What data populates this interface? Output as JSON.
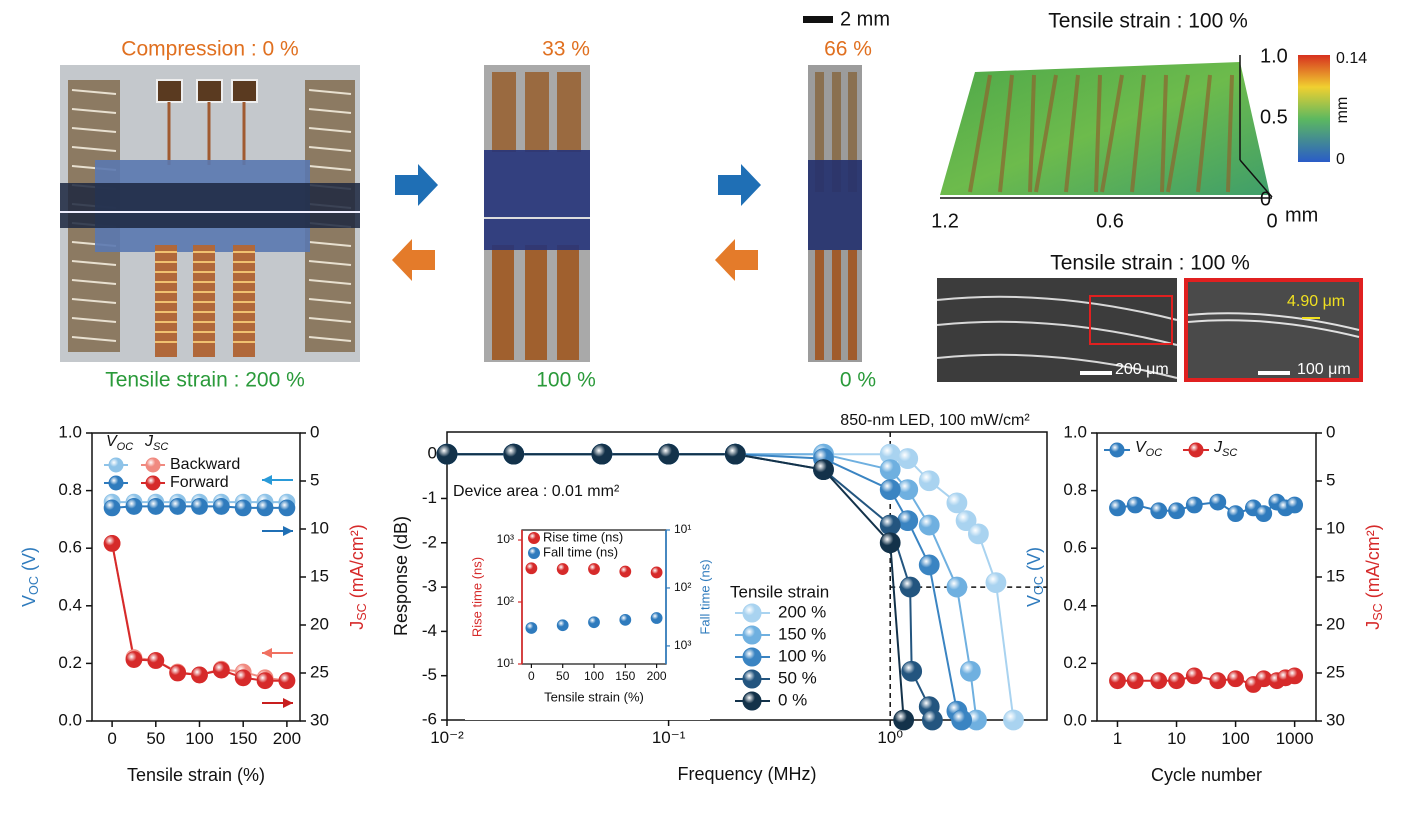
{
  "panels": {
    "photo1": {
      "top": "Compression : 0 %",
      "bottom": "Tensile strain : 200 %"
    },
    "photo2": {
      "top": "33 %",
      "bottom": "100 %"
    },
    "photo3": {
      "top": "66 %",
      "bottom": "0 %"
    },
    "scale_bar": "2 mm",
    "surface": {
      "title": "Tensile strain : 100 %",
      "z_ticks": [
        "1.0",
        "0.5",
        "0"
      ],
      "x_ticks": [
        "1.2",
        "0.6",
        "0"
      ],
      "unit": "mm",
      "colorbar_ticks": [
        "0.14",
        "0"
      ],
      "colorbar_unit": "mm"
    },
    "sem": {
      "title": "Tensile strain : 100 %",
      "scale_left": "200 μm",
      "scale_right": "100 μm",
      "thickness": "4.90 μm"
    }
  },
  "chart_data": [
    {
      "type": "line",
      "x": [
        0,
        25,
        50,
        75,
        100,
        125,
        150,
        175,
        200
      ],
      "xlim": [
        -23,
        215
      ],
      "xticks": [
        0,
        50,
        100,
        150,
        200
      ],
      "xlabel": "Tensile strain (%)",
      "ylim": [
        0,
        1
      ],
      "yticks": [
        {
          "value": 0,
          "label": "0.0"
        },
        0.2,
        0.4,
        0.6,
        0.8,
        {
          "value": 1,
          "label": "1.0"
        }
      ],
      "ylabel": [
        "V",
        "OC",
        " (V)"
      ],
      "ylabel_color": "#2f7bbd",
      "y2lim": [
        30,
        0
      ],
      "y2ticks": [
        0,
        5,
        10,
        15,
        20,
        25,
        30
      ],
      "y2label": [
        "J",
        "SC",
        " (mA/cm²)"
      ],
      "y2label_color": "#d62a2a",
      "legend_headers": [
        [
          "V",
          "OC"
        ],
        [
          "J",
          "SC"
        ]
      ],
      "series": [
        {
          "name": "Backward",
          "color": "#8ec3e8",
          "values": [
            0.76,
            0.76,
            0.76,
            0.76,
            0.76,
            0.76,
            0.76,
            0.76,
            0.76
          ]
        },
        {
          "name": "Forward",
          "color": "#2f7bbd",
          "values": [
            0.74,
            0.745,
            0.745,
            0.745,
            0.745,
            0.745,
            0.74,
            0.74,
            0.74
          ]
        },
        {
          "name": "Backward",
          "color": "#f08a80",
          "axis": "y2",
          "values": [
            11.5,
            23.4,
            23.7,
            24.9,
            25.2,
            24.6,
            24.9,
            25.5,
            25.8
          ]
        },
        {
          "name": "Forward",
          "color": "#d62a2a",
          "axis": "y2",
          "values": [
            11.5,
            23.6,
            23.7,
            25.0,
            25.2,
            24.7,
            25.5,
            25.8,
            25.8
          ]
        }
      ]
    },
    {
      "type": "line",
      "xscale": "log",
      "xlim": [
        0.01,
        5.1
      ],
      "xticks": [
        {
          "value": 0.01,
          "label": "10⁻²"
        },
        {
          "value": 0.1,
          "label": "10⁻¹"
        },
        {
          "value": 1,
          "label": "10⁰"
        }
      ],
      "xlabel": "Frequency (MHz)",
      "ylim": [
        -6,
        0.5
      ],
      "yticks": [
        0,
        -1,
        -2,
        -3,
        -4,
        -5,
        -6
      ],
      "ylabel": "Response (dB)",
      "vlines": [
        1
      ],
      "hlines": [
        -3
      ],
      "annotations": [
        "850-nm LED, 100 mW/cm²",
        "Device area : 0.01 mm²"
      ],
      "legend_title": "Tensile strain",
      "series": [
        {
          "name": "200 %",
          "color": "#a9d3f0",
          "x": [
            0.01,
            0.02,
            0.05,
            0.1,
            0.2,
            0.5,
            1.0,
            1.2,
            1.5,
            2.0,
            2.2,
            2.5,
            3.0,
            3.6
          ],
          "values": [
            0,
            0,
            0,
            0,
            0,
            0,
            0,
            -0.1,
            -0.6,
            -1.1,
            -1.5,
            -1.8,
            -2.9,
            -6
          ]
        },
        {
          "name": "150 %",
          "color": "#6fb0e0",
          "x": [
            0.01,
            0.02,
            0.05,
            0.1,
            0.2,
            0.5,
            1.0,
            1.2,
            1.5,
            2.0,
            2.3,
            2.45
          ],
          "values": [
            0,
            0,
            0,
            0,
            0,
            0,
            -0.35,
            -0.8,
            -1.6,
            -3.0,
            -4.9,
            -6
          ]
        },
        {
          "name": "100 %",
          "color": "#3a84c2",
          "x": [
            0.01,
            0.02,
            0.05,
            0.1,
            0.2,
            0.5,
            1.0,
            1.2,
            1.5,
            2.0,
            2.1
          ],
          "values": [
            0,
            0,
            0,
            0,
            0,
            -0.1,
            -0.8,
            -1.5,
            -2.5,
            -5.8,
            -6
          ]
        },
        {
          "name": "50 %",
          "color": "#23557f",
          "x": [
            0.01,
            0.02,
            0.05,
            0.1,
            0.2,
            0.5,
            1.0,
            1.23,
            1.25,
            1.5,
            1.55
          ],
          "values": [
            0,
            0,
            0,
            0,
            0,
            -0.35,
            -1.6,
            -3.0,
            -4.9,
            -5.7,
            -6
          ]
        },
        {
          "name": "0 %",
          "color": "#13324a",
          "x": [
            0.01,
            0.02,
            0.05,
            0.1,
            0.2,
            0.5,
            1.0,
            1.15
          ],
          "values": [
            0,
            0,
            0,
            0,
            0,
            -0.35,
            -2.0,
            -6
          ]
        }
      ]
    },
    {
      "type": "scatter",
      "x": [
        0,
        50,
        100,
        150,
        200
      ],
      "xlim": [
        -15,
        215
      ],
      "xticks": [
        0,
        50,
        100,
        150,
        200
      ],
      "xlabel": "Tensile strain (%)",
      "yscale": "log",
      "ylim": [
        10,
        1450
      ],
      "yticks": [
        {
          "value": 10,
          "label": "10¹"
        },
        {
          "value": 100,
          "label": "10²"
        },
        {
          "value": 1000,
          "label": "10³"
        }
      ],
      "ylabel": "Rise time (ns)",
      "ylabel_color": "#d62a2a",
      "y2scale": "log",
      "y2lim": [
        2050,
        10
      ],
      "y2ticks": [
        {
          "value": 10,
          "label": "10¹"
        },
        {
          "value": 100,
          "label": "10²"
        },
        {
          "value": 1000,
          "label": "10³"
        }
      ],
      "y2label": "Fall time (ns)",
      "y2label_color": "#2f7bbd",
      "series": [
        {
          "name": "Rise time (ns)",
          "color": "#d62a2a",
          "values": [
            350,
            340,
            340,
            310,
            300
          ]
        },
        {
          "name": "Fall time (ns)",
          "color": "#2f7bbd",
          "axis": "y2",
          "values": [
            490,
            440,
            390,
            355,
            330
          ]
        }
      ]
    },
    {
      "type": "line",
      "xscale": "log",
      "x": [
        1,
        2,
        5,
        10,
        20,
        50,
        100,
        200,
        300,
        500,
        700,
        1000
      ],
      "xlim": [
        0.45,
        2300
      ],
      "xticks": [
        1,
        10,
        100,
        1000
      ],
      "xlabel": "Cycle number",
      "ylim": [
        0,
        1
      ],
      "yticks": [
        {
          "value": 0,
          "label": "0.0"
        },
        0.2,
        0.4,
        0.6,
        0.8,
        {
          "value": 1,
          "label": "1.0"
        }
      ],
      "ylabel": [
        "V",
        "OC",
        " (V)"
      ],
      "ylabel_color": "#2f7bbd",
      "y2lim": [
        30,
        0
      ],
      "y2ticks": [
        0,
        5,
        10,
        15,
        20,
        25,
        30
      ],
      "y2label": [
        "J",
        "SC",
        " (mA/cm²)"
      ],
      "y2label_color": "#d62a2a",
      "series": [
        {
          "name": [
            "V",
            "OC"
          ],
          "color": "#2f7bbd",
          "values": [
            0.74,
            0.75,
            0.73,
            0.73,
            0.75,
            0.76,
            0.72,
            0.74,
            0.72,
            0.76,
            0.74,
            0.75
          ]
        },
        {
          "name": [
            "J",
            "SC"
          ],
          "color": "#d62a2a",
          "axis": "y2",
          "values": [
            25.8,
            25.8,
            25.8,
            25.8,
            25.3,
            25.8,
            25.6,
            26.2,
            25.6,
            25.8,
            25.5,
            25.3
          ]
        }
      ]
    }
  ]
}
